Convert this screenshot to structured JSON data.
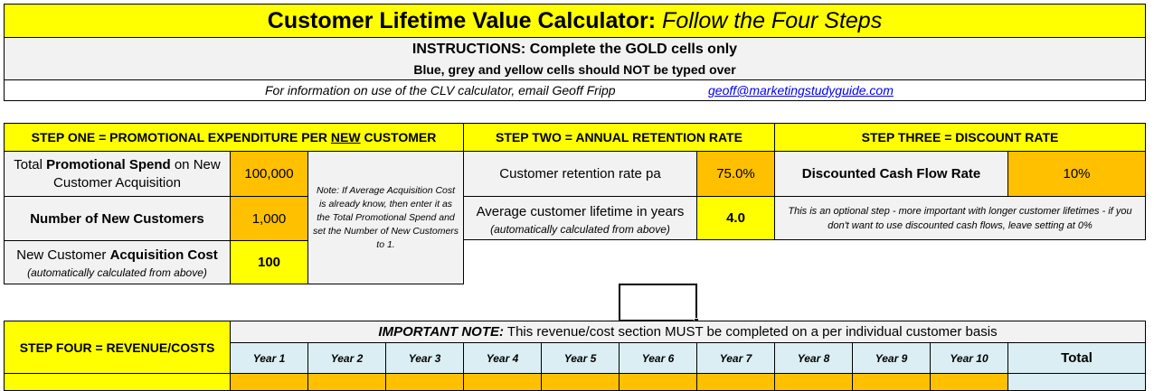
{
  "header": {
    "title_bold": "Customer Lifetime Value Calculator:",
    "title_italic": "Follow the Four Steps",
    "instructions_line1": "INSTRUCTIONS: Complete the GOLD cells only",
    "instructions_line2": "Blue, grey and yellow cells should NOT be typed over",
    "info_text": "For information on use of the CLV calculator, email Geoff Fripp",
    "info_email": "geoff@marketingstudyguide.com"
  },
  "step_one": {
    "heading_prefix": "STEP ONE = PROMOTIONAL EXPENDITURE PER ",
    "heading_underlined": "NEW",
    "heading_suffix": " CUSTOMER",
    "spend_label_pre": "Total ",
    "spend_label_bold": "Promotional Spend",
    "spend_label_post": " on New Customer Acquisition",
    "spend_value": "100,000",
    "customers_label": "Number of New Customers",
    "customers_value": "1,000",
    "acq_label_pre": "New Customer ",
    "acq_label_bold": "Acquisition Cost",
    "acq_label_note": "(automatically calculated from above)",
    "acq_value": "100",
    "note": "Note: If Average Acquisition Cost is already know, then enter it as the Total Promotional Spend and set the Number of New Customers to 1."
  },
  "step_two": {
    "heading": "STEP TWO = ANNUAL RETENTION RATE",
    "retention_label": "Customer retention rate pa",
    "retention_value": "75.0%",
    "lifetime_label": "Average customer lifetime in years",
    "lifetime_note": "(automatically calculated from above)",
    "lifetime_value": "4.0"
  },
  "step_three": {
    "heading": "STEP THREE = DISCOUNT RATE",
    "dcf_label": "Discounted Cash Flow Rate",
    "dcf_value": "10%",
    "note": "This is an optional step - more important with longer customer lifetimes - if you don't want to use discounted cash flows, leave setting at 0%"
  },
  "step_four": {
    "heading": "STEP FOUR = REVENUE/COSTS",
    "important_bold": "IMPORTANT NOTE:",
    "important_text": " This revenue/cost section MUST be completed on a per individual customer basis",
    "years": [
      "Year 1",
      "Year 2",
      "Year 3",
      "Year 4",
      "Year 5",
      "Year 6",
      "Year 7",
      "Year 8",
      "Year 9",
      "Year 10"
    ],
    "total_label": "Total"
  },
  "colors": {
    "yellow": "#ffff00",
    "gold": "#ffc000",
    "grey": "#f2f2f2",
    "blue": "#daeef3",
    "email_link": "#0000ee"
  }
}
